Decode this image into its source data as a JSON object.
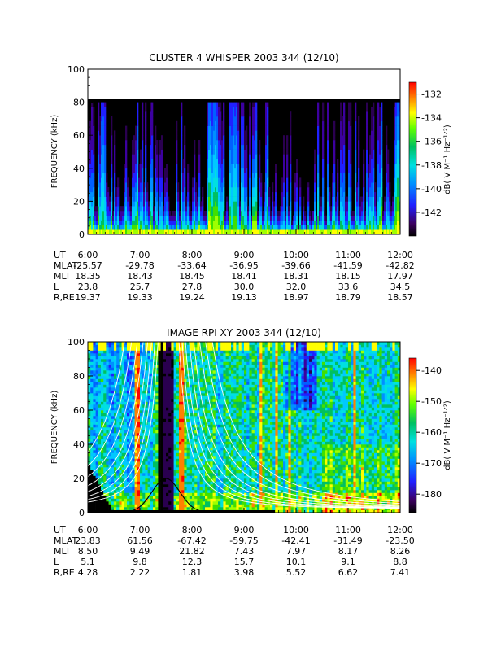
{
  "chart_data": [
    {
      "type": "heatmap",
      "title": "CLUSTER 4 WHISPER 2003 344 (12/10)",
      "ylabel": "FREQUENCY (kHz)",
      "ylim": [
        0,
        100
      ],
      "y_ticks": [
        "0",
        "20",
        "40",
        "60",
        "80",
        "100"
      ],
      "x_ticks": [
        "6:00",
        "7:00",
        "8:00",
        "9:00",
        "10:00",
        "11:00",
        "12:00"
      ],
      "colorbar": {
        "label": "dB( V M⁻¹ Hz⁻¹ᐟ²)",
        "ticks": [
          "-132",
          "-134",
          "-136",
          "-138",
          "-140",
          "-142"
        ],
        "range": [
          -144,
          -131
        ]
      },
      "ephemeris": {
        "labels": [
          "UT",
          "MLAT",
          "MLT",
          "L",
          "R,RE"
        ],
        "rows": [
          [
            "6:00",
            "7:00",
            "8:00",
            "9:00",
            "10:00",
            "11:00",
            "12:00"
          ],
          [
            "-25.57",
            "-29.78",
            "-33.64",
            "-36.95",
            "-39.66",
            "-41.59",
            "-42.82"
          ],
          [
            "18.35",
            "18.43",
            "18.45",
            "18.41",
            "18.31",
            "18.15",
            "17.97"
          ],
          [
            "23.8",
            "25.7",
            "27.8",
            "30.0",
            "32.0",
            "33.6",
            "34.5"
          ],
          [
            "19.37",
            "19.33",
            "19.24",
            "19.13",
            "18.97",
            "18.79",
            "18.57"
          ]
        ]
      },
      "spectral_features": [
        {
          "time_hr": 6.3,
          "freq_top_khz": 80,
          "level": "high"
        },
        {
          "time_hr": 8.4,
          "freq_top_khz": 80,
          "level": "medium"
        },
        {
          "time_hr": 8.8,
          "freq_top_khz": 80,
          "level": "medium"
        },
        {
          "time_hr": 11.95,
          "freq_top_khz": 80,
          "level": "medium"
        }
      ]
    },
    {
      "type": "heatmap",
      "title": "IMAGE RPI XY 2003 344 (12/10)",
      "ylabel": "FREQUENCY (kHz)",
      "ylim": [
        0,
        100
      ],
      "y_ticks": [
        "0",
        "20",
        "40",
        "60",
        "80",
        "100"
      ],
      "x_ticks": [
        "6:00",
        "7:00",
        "8:00",
        "9:00",
        "10:00",
        "11:00",
        "12:00"
      ],
      "colorbar": {
        "label": "dB( V M⁻¹ Hz⁻¹ᐟ²)",
        "ticks": [
          "-140",
          "-150",
          "-160",
          "-170",
          "-180"
        ],
        "range": [
          -186,
          -136
        ]
      },
      "ephemeris": {
        "labels": [
          "UT",
          "MLAT",
          "MLT",
          "L",
          "R,RE"
        ],
        "rows": [
          [
            "6:00",
            "7:00",
            "8:00",
            "9:00",
            "10:00",
            "11:00",
            "12:00"
          ],
          [
            "23.83",
            "61.56",
            "-67.42",
            "-59.75",
            "-42.41",
            "-31.49",
            "-23.50"
          ],
          [
            "8.50",
            "9.49",
            "21.82",
            "7.43",
            "7.97",
            "8.17",
            "8.26"
          ],
          [
            "5.1",
            "9.8",
            "12.3",
            "15.7",
            "10.1",
            "9.1",
            "8.8"
          ],
          [
            "4.28",
            "2.22",
            "1.81",
            "3.98",
            "5.52",
            "6.62",
            "7.41"
          ]
        ]
      },
      "spectral_features": [
        {
          "time_hr": 6.6,
          "freq_top_khz": 100,
          "level": "high"
        },
        {
          "time_hr": 7.5,
          "freq_top_khz": 100,
          "level": "high"
        },
        {
          "time_hr": 8.3,
          "freq_top_khz": 100,
          "level": "medium"
        },
        {
          "time_hr": 9.6,
          "freq_top_khz": 100,
          "level": "medium"
        }
      ]
    }
  ],
  "colors": {
    "background": "#ffffff",
    "plot_background": "#000000",
    "overlay_lines": "#ffffff"
  }
}
